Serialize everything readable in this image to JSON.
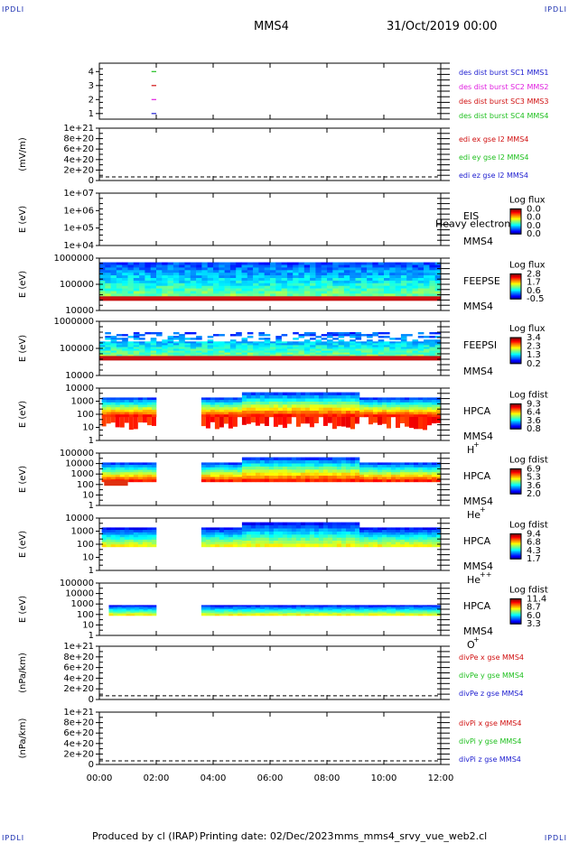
{
  "corner_mark": "IPDLI",
  "header": {
    "spacecraft": "MMS4",
    "datetime": "31/Oct/2019 00:00"
  },
  "footer": {
    "produced_by": "Produced by cl (IRAP)",
    "printing_date": "Printing date: 02/Dec/2023",
    "script_name": "mms_mms4_srvy_vue_web2.cl"
  },
  "x_axis": {
    "ticks": [
      "00:00",
      "02:00",
      "04:00",
      "06:00",
      "08:00",
      "10:00",
      "12:00"
    ]
  },
  "chart_data": [
    {
      "type": "line",
      "panel": "des dist burst",
      "yticks": [
        "4",
        "3",
        "2",
        "1"
      ],
      "ylim": [
        0.6,
        4.6
      ],
      "series": [
        {
          "name": "des dist burst SC1 MMS1",
          "color": "#2020d0",
          "x": [
            "01:50",
            "02:00"
          ],
          "y": [
            1,
            1
          ]
        },
        {
          "name": "des dist burst SC2 MMS2",
          "color": "#e020e0",
          "x": [
            "01:50",
            "02:00"
          ],
          "y": [
            2,
            2
          ]
        },
        {
          "name": "des dist burst SC3 MMS3",
          "color": "#d01010",
          "x": [
            "01:50",
            "02:00"
          ],
          "y": [
            3,
            3
          ]
        },
        {
          "name": "des dist burst SC4 MMS4",
          "color": "#20c020",
          "x": [
            "01:50",
            "02:00"
          ],
          "y": [
            4,
            4
          ]
        }
      ]
    },
    {
      "type": "line",
      "panel": "edi",
      "ylabel": "(mV/m)",
      "yticks": [
        "1e+21",
        "8e+20",
        "6e+20",
        "4e+20",
        "2e+20",
        "0"
      ],
      "series": [
        {
          "name": "edi ex gse l2 MMS4",
          "color": "#d01010"
        },
        {
          "name": "edi ey gse l2 MMS4",
          "color": "#20c020"
        },
        {
          "name": "edi ez gse l2 MMS4",
          "color": "#2020d0"
        }
      ]
    },
    {
      "type": "heatmap",
      "panel": "EIS",
      "ylabel": "E (eV)",
      "yticks": [
        "1e+07",
        "1e+06",
        "1e+05",
        "1e+04"
      ],
      "labels": [
        "EIS",
        "MMS4"
      ],
      "overlay_text": "Heavy electron t",
      "colorbar": {
        "title": "Log flux",
        "ticks": [
          "0.0",
          "0.0",
          "0.0",
          "0.0"
        ]
      }
    },
    {
      "type": "heatmap",
      "panel": "FEEPSE",
      "ylabel": "E (eV)",
      "yticks": [
        "1000000",
        "100000",
        "10000"
      ],
      "labels": [
        "FEEPSE",
        "MMS4"
      ],
      "colorbar": {
        "title": "Log flux",
        "ticks": [
          "2.8",
          "1.7",
          "0.6",
          "-0.5"
        ]
      }
    },
    {
      "type": "heatmap",
      "panel": "FEEPSI",
      "ylabel": "E (eV)",
      "yticks": [
        "1000000",
        "100000",
        "10000"
      ],
      "labels": [
        "FEEPSI",
        "MMS4"
      ],
      "colorbar": {
        "title": "Log flux",
        "ticks": [
          "3.4",
          "2.3",
          "1.3",
          "0.2"
        ]
      }
    },
    {
      "type": "heatmap",
      "panel": "HPCA H+",
      "ylabel": "E (eV)",
      "yticks": [
        "10000",
        "1000",
        "100",
        "10",
        "1"
      ],
      "labels": [
        "HPCA",
        "MMS4",
        "H",
        "+"
      ],
      "colorbar": {
        "title": "Log fdist",
        "ticks": [
          "9.3",
          "6.4",
          "3.6",
          "0.8"
        ]
      }
    },
    {
      "type": "heatmap",
      "panel": "HPCA He+",
      "ylabel": "E (eV)",
      "yticks": [
        "100000",
        "10000",
        "1000",
        "100",
        "10",
        "1"
      ],
      "labels": [
        "HPCA",
        "MMS4",
        "He",
        "+"
      ],
      "colorbar": {
        "title": "Log fdist",
        "ticks": [
          "6.9",
          "5.3",
          "3.6",
          "2.0"
        ]
      }
    },
    {
      "type": "heatmap",
      "panel": "HPCA He++",
      "ylabel": "E (eV)",
      "yticks": [
        "10000",
        "1000",
        "100",
        "10",
        "1"
      ],
      "labels": [
        "HPCA",
        "MMS4",
        "He",
        "++"
      ],
      "colorbar": {
        "title": "Log fdist",
        "ticks": [
          "9.4",
          "6.8",
          "4.3",
          "1.7"
        ]
      }
    },
    {
      "type": "heatmap",
      "panel": "HPCA O+",
      "ylabel": "E (eV)",
      "yticks": [
        "100000",
        "10000",
        "1000",
        "100",
        "10",
        "1"
      ],
      "labels": [
        "HPCA",
        "MMS4",
        "O",
        "+"
      ],
      "colorbar": {
        "title": "Log fdist",
        "ticks": [
          "11.4",
          "8.7",
          "6.0",
          "3.3"
        ]
      }
    },
    {
      "type": "line",
      "panel": "divPe",
      "ylabel": "(nPa/km)",
      "yticks": [
        "1e+21",
        "8e+20",
        "6e+20",
        "4e+20",
        "2e+20",
        "0"
      ],
      "series": [
        {
          "name": "divPe x gse MMS4",
          "color": "#d01010"
        },
        {
          "name": "divPe y gse MMS4",
          "color": "#20c020"
        },
        {
          "name": "divPe z gse MMS4",
          "color": "#2020d0"
        }
      ]
    },
    {
      "type": "line",
      "panel": "divPi",
      "ylabel": "(nPa/km)",
      "yticks": [
        "1e+21",
        "8e+20",
        "6e+20",
        "4e+20",
        "2e+20",
        "0"
      ],
      "series": [
        {
          "name": "divPi x gse MMS4",
          "color": "#d01010"
        },
        {
          "name": "divPi y gse MMS4",
          "color": "#20c020"
        },
        {
          "name": "divPi z gse MMS4",
          "color": "#2020d0"
        }
      ]
    }
  ]
}
